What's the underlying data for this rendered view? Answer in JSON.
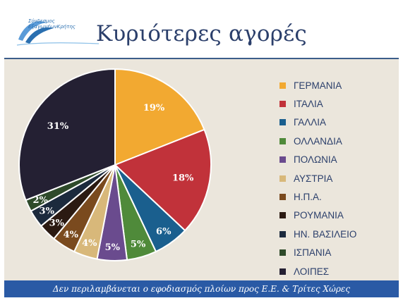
{
  "header": {
    "logo_line1": "Σύνδεσμος",
    "logo_line2": "ΕξαγωγέωνΚρήτης",
    "title": "Κυριότερες αγορές"
  },
  "footer": {
    "note": "Δεν περιλαμβάνεται ο εφοδιασμός πλοίων προς Ε.Ε. & Τρίτες Χώρες"
  },
  "colors": {
    "background": "#ebe6dc",
    "title": "#2b3f6b",
    "footer_bar": "#2a5aa5"
  },
  "chart_data": {
    "type": "pie",
    "title": "Κυριότερες αγορές",
    "legend_position": "right",
    "slices": [
      {
        "label": "ΓΕΡΜΑΝΙΑ",
        "value": 19,
        "display": "19%",
        "color": "#f2a931"
      },
      {
        "label": "ΙΤΑΛΙΑ",
        "value": 18,
        "display": "18%",
        "color": "#c1323a"
      },
      {
        "label": "ΓΑΛΛΙΑ",
        "value": 6,
        "display": "6%",
        "color": "#1a5f8e"
      },
      {
        "label": "ΟΛΛΑΝΔΙΑ",
        "value": 5,
        "display": "5%",
        "color": "#4f8a3a"
      },
      {
        "label": "ΠΟΛΩΝΙΑ",
        "value": 5,
        "display": "5%",
        "color": "#6a4b8e"
      },
      {
        "label": "ΑΥΣΤΡΙΑ",
        "value": 4,
        "display": "4%",
        "color": "#d8b87a"
      },
      {
        "label": "Η.Π.Α.",
        "value": 4,
        "display": "4%",
        "color": "#7a4a1e"
      },
      {
        "label": "ΡΟΥΜΑΝΙΑ",
        "value": 3,
        "display": "3%",
        "color": "#2b1a12"
      },
      {
        "label": "ΗΝ. ΒΑΣΙΛΕΙΟ",
        "value": 3,
        "display": "3%",
        "color": "#1c2a3d"
      },
      {
        "label": "ΙΣΠΑΝΙΑ",
        "value": 2,
        "display": "2%",
        "color": "#2e4a2a"
      },
      {
        "label": "ΛΟΙΠΕΣ",
        "value": 31,
        "display": "31%",
        "color": "#242033"
      }
    ]
  }
}
